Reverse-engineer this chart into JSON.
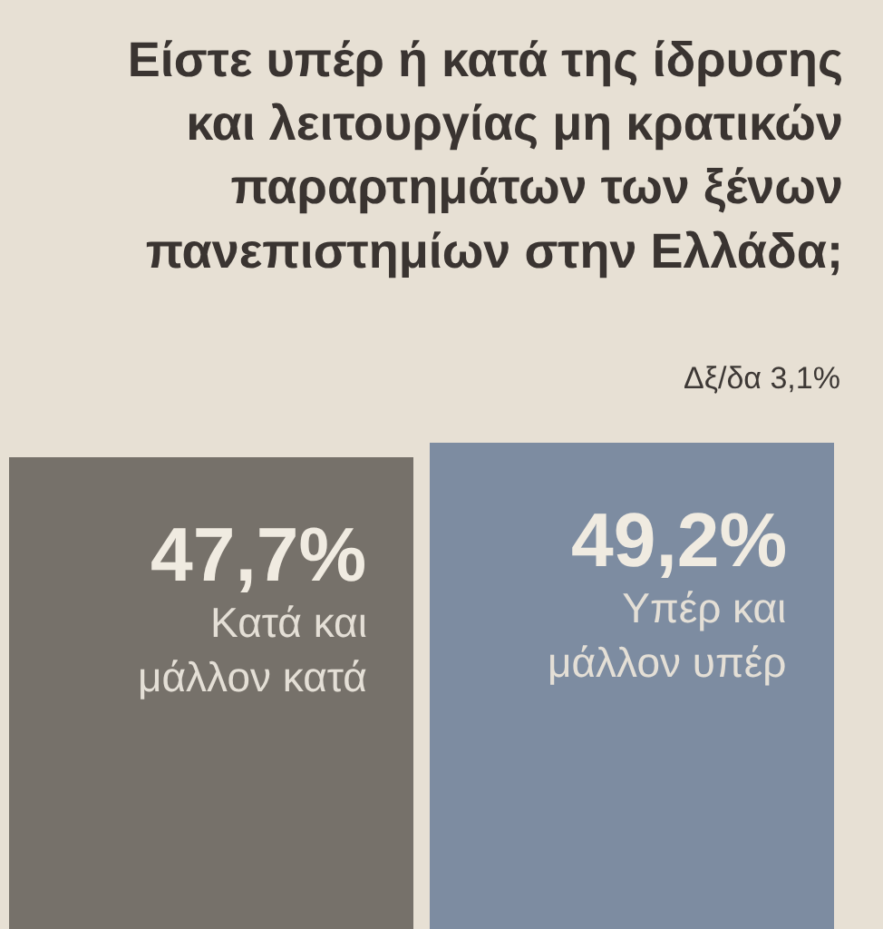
{
  "chart_data": {
    "type": "bar",
    "title": "Είστε υπέρ ή κατά της ίδρυσης και λειτουργίας μη κρατικών παραρτημάτων των ξένων πανεπιστημίων στην Ελλάδα;",
    "annotations": [
      "Δξ/δα 3,1%"
    ],
    "categories": [
      "Κατά και μάλλον κατά",
      "Υπέρ και μάλλον υπέρ"
    ],
    "values": [
      47.7,
      49.2
    ],
    "colors": [
      "#76716a",
      "#7d8ca1"
    ],
    "value_labels": [
      "47,7%",
      "49,2%"
    ],
    "tick_labels": false,
    "legend": false
  }
}
